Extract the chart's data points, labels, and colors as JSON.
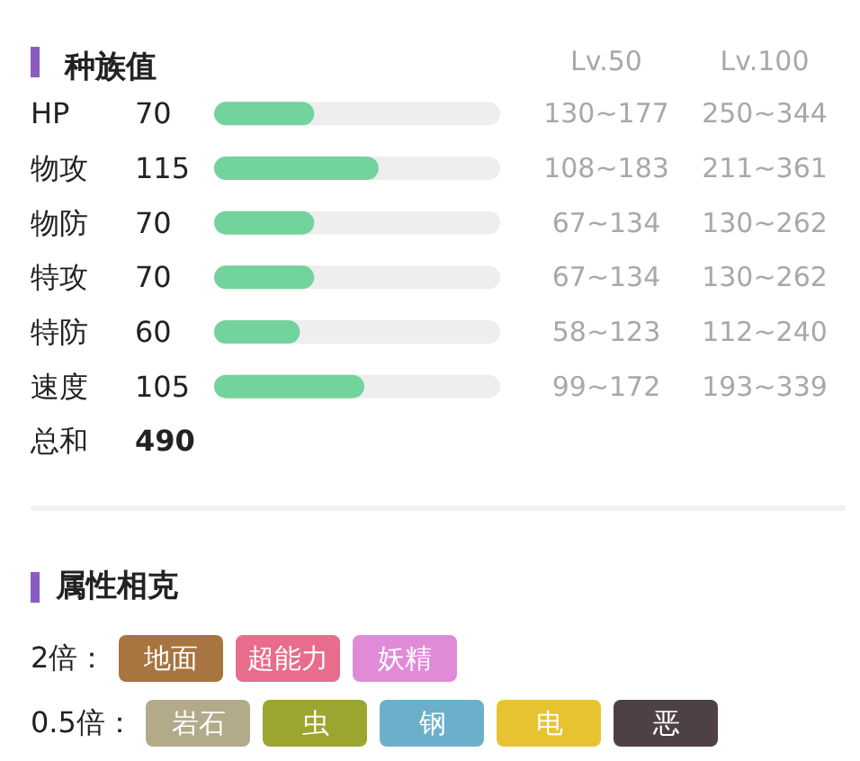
{
  "chart_data": [
    {
      "type": "bar",
      "orientation": "horizontal",
      "title": "种族值",
      "categories": [
        "HP",
        "物攻",
        "物防",
        "特攻",
        "特防",
        "速度"
      ],
      "values": [
        70,
        115,
        70,
        70,
        60,
        105
      ],
      "color": "#72d39c",
      "xlim": [
        0,
        200
      ],
      "data_labels": true,
      "tick_labels": "y",
      "annotations": [
        "Lv.50",
        "Lv.100",
        "130~177",
        "250~344",
        "108~183",
        "211~361",
        "67~134",
        "130~262",
        "67~134",
        "130~262",
        "58~123",
        "112~240",
        "99~172",
        "193~339",
        "总和",
        "490"
      ]
    },
    {
      "type": "other",
      "title": "属性相克",
      "y_categories": [
        "2倍：",
        "0.5倍："
      ],
      "cell_labels": [
        [
          "地面",
          "超能力",
          "妖精"
        ],
        [
          "岩石",
          "虫",
          "钢",
          "电",
          "恶"
        ]
      ],
      "colors": [
        [
          "#a8743f",
          "#e86c8c",
          "#e18bd8"
        ],
        [
          "#b3aa8a",
          "#9ca52f",
          "#6cafca",
          "#e7c331",
          "#4d4145"
        ]
      ]
    }
  ]
}
